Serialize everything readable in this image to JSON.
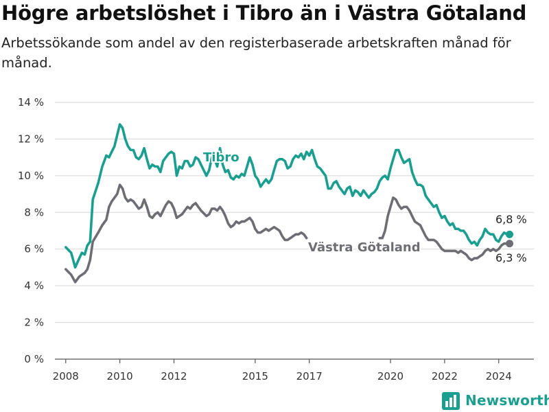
{
  "title": "Högre arbetslöshet i Tibro än i Västra Götaland",
  "subtitle": "Arbetssökande som andel av den registerbaserade arbetskraften månad för månad.",
  "brand": {
    "name": "Newsworthy",
    "icon": "bar-chart-logo-icon"
  },
  "colors": {
    "tibro": "#1a9e8f",
    "vg": "#6d6e73",
    "grid": "#d6d6d6"
  },
  "chart_data": {
    "type": "line",
    "ylim": [
      0,
      14
    ],
    "xlim": [
      2007.6,
      2025.3
    ],
    "y_ticks": [
      0,
      2,
      4,
      6,
      8,
      10,
      12,
      14
    ],
    "y_tick_labels": [
      "0 %",
      "2 %",
      "4 %",
      "6 %",
      "8 %",
      "10 %",
      "12 %",
      "14 %"
    ],
    "x_ticks": [
      2008,
      2010,
      2012,
      2015,
      2017,
      2020,
      2022,
      2024
    ],
    "x_tick_labels": [
      "2008",
      "2010",
      "2012",
      "2015",
      "2017",
      "2020",
      "2022",
      "2024"
    ],
    "grid": true,
    "series": [
      {
        "name": "Tibro",
        "end_label": "6,8 %",
        "points": [
          [
            2008.0,
            6.1
          ],
          [
            2008.2,
            5.8
          ],
          [
            2008.35,
            5.0
          ],
          [
            2008.5,
            5.5
          ],
          [
            2008.6,
            5.8
          ],
          [
            2008.7,
            5.7
          ],
          [
            2008.8,
            6.2
          ],
          [
            2008.9,
            6.4
          ],
          [
            2009.0,
            8.7
          ],
          [
            2009.2,
            9.6
          ],
          [
            2009.35,
            10.5
          ],
          [
            2009.5,
            11.1
          ],
          [
            2009.6,
            11.0
          ],
          [
            2009.7,
            11.3
          ],
          [
            2009.8,
            11.6
          ],
          [
            2009.9,
            12.2
          ],
          [
            2010.0,
            12.8
          ],
          [
            2010.1,
            12.6
          ],
          [
            2010.2,
            12.0
          ],
          [
            2010.3,
            11.6
          ],
          [
            2010.4,
            11.4
          ],
          [
            2010.5,
            11.4
          ],
          [
            2010.6,
            11.0
          ],
          [
            2010.7,
            10.9
          ],
          [
            2010.8,
            11.1
          ],
          [
            2010.9,
            11.5
          ],
          [
            2011.0,
            10.9
          ],
          [
            2011.1,
            10.4
          ],
          [
            2011.2,
            10.6
          ],
          [
            2011.3,
            10.5
          ],
          [
            2011.4,
            10.5
          ],
          [
            2011.5,
            10.2
          ],
          [
            2011.6,
            10.8
          ],
          [
            2011.7,
            11.0
          ],
          [
            2011.8,
            11.2
          ],
          [
            2011.9,
            11.3
          ],
          [
            2012.0,
            11.2
          ],
          [
            2012.1,
            10.0
          ],
          [
            2012.2,
            10.5
          ],
          [
            2012.3,
            10.4
          ],
          [
            2012.4,
            10.8
          ],
          [
            2012.5,
            10.8
          ],
          [
            2012.6,
            10.5
          ],
          [
            2012.7,
            10.6
          ],
          [
            2012.8,
            11.0
          ],
          [
            2012.9,
            10.9
          ],
          [
            2013.0,
            10.6
          ],
          [
            2013.2,
            10.0
          ],
          [
            2013.3,
            10.3
          ],
          [
            2013.4,
            11.0
          ],
          [
            2013.5,
            10.9
          ],
          [
            2013.6,
            10.5
          ],
          [
            2013.7,
            11.5
          ],
          [
            2013.8,
            10.6
          ],
          [
            2013.9,
            10.2
          ],
          [
            2014.0,
            10.3
          ],
          [
            2014.1,
            9.9
          ],
          [
            2014.2,
            9.8
          ],
          [
            2014.3,
            10.0
          ],
          [
            2014.4,
            9.9
          ],
          [
            2014.5,
            10.1
          ],
          [
            2014.6,
            10.0
          ],
          [
            2014.7,
            10.5
          ],
          [
            2014.8,
            11.0
          ],
          [
            2014.9,
            10.6
          ],
          [
            2015.0,
            10.0
          ],
          [
            2015.1,
            9.8
          ],
          [
            2015.2,
            9.4
          ],
          [
            2015.3,
            9.6
          ],
          [
            2015.4,
            9.8
          ],
          [
            2015.5,
            9.6
          ],
          [
            2015.6,
            9.8
          ],
          [
            2015.7,
            10.3
          ],
          [
            2015.8,
            10.8
          ],
          [
            2015.9,
            10.9
          ],
          [
            2016.0,
            10.9
          ],
          [
            2016.1,
            10.8
          ],
          [
            2016.2,
            10.4
          ],
          [
            2016.3,
            10.5
          ],
          [
            2016.4,
            10.9
          ],
          [
            2016.5,
            11.1
          ],
          [
            2016.6,
            11.0
          ],
          [
            2016.7,
            11.2
          ],
          [
            2016.8,
            10.9
          ],
          [
            2016.9,
            11.3
          ],
          [
            2017.0,
            11.1
          ],
          [
            2017.1,
            11.4
          ],
          [
            2017.2,
            10.9
          ],
          [
            2017.3,
            10.5
          ],
          [
            2017.4,
            10.4
          ],
          [
            2017.5,
            10.2
          ],
          [
            2017.6,
            10.0
          ],
          [
            2017.7,
            9.3
          ],
          [
            2017.8,
            9.3
          ],
          [
            2017.9,
            9.6
          ],
          [
            2018.0,
            9.7
          ],
          [
            2018.1,
            9.4
          ],
          [
            2018.2,
            9.2
          ],
          [
            2018.3,
            9.0
          ],
          [
            2018.4,
            9.3
          ],
          [
            2018.5,
            9.4
          ],
          [
            2018.6,
            8.9
          ],
          [
            2018.7,
            9.2
          ],
          [
            2018.8,
            9.1
          ],
          [
            2018.9,
            8.9
          ],
          [
            2019.0,
            9.2
          ],
          [
            2019.1,
            9.0
          ],
          [
            2019.2,
            8.8
          ],
          [
            2019.3,
            9.0
          ],
          [
            2019.4,
            9.1
          ],
          [
            2019.5,
            9.3
          ],
          [
            2019.6,
            9.7
          ],
          [
            2019.7,
            9.9
          ],
          [
            2019.8,
            10.0
          ],
          [
            2019.9,
            9.8
          ],
          [
            2020.0,
            10.4
          ],
          [
            2020.1,
            10.9
          ],
          [
            2020.2,
            11.4
          ],
          [
            2020.3,
            11.4
          ],
          [
            2020.4,
            11.0
          ],
          [
            2020.5,
            10.7
          ],
          [
            2020.6,
            10.8
          ],
          [
            2020.7,
            10.9
          ],
          [
            2020.8,
            10.2
          ],
          [
            2020.9,
            9.8
          ],
          [
            2021.0,
            9.5
          ],
          [
            2021.1,
            9.5
          ],
          [
            2021.2,
            9.4
          ],
          [
            2021.3,
            8.9
          ],
          [
            2021.4,
            8.7
          ],
          [
            2021.5,
            8.5
          ],
          [
            2021.6,
            8.3
          ],
          [
            2021.7,
            8.4
          ],
          [
            2021.8,
            8.0
          ],
          [
            2021.9,
            7.7
          ],
          [
            2022.0,
            7.8
          ],
          [
            2022.1,
            7.5
          ],
          [
            2022.2,
            7.3
          ],
          [
            2022.3,
            7.4
          ],
          [
            2022.4,
            7.1
          ],
          [
            2022.5,
            7.1
          ],
          [
            2022.6,
            7.0
          ],
          [
            2022.7,
            7.0
          ],
          [
            2022.8,
            6.8
          ],
          [
            2022.9,
            6.5
          ],
          [
            2023.0,
            6.3
          ],
          [
            2023.1,
            6.4
          ],
          [
            2023.2,
            6.2
          ],
          [
            2023.3,
            6.5
          ],
          [
            2023.4,
            6.7
          ],
          [
            2023.5,
            7.1
          ],
          [
            2023.6,
            6.9
          ],
          [
            2023.7,
            6.8
          ],
          [
            2023.8,
            6.8
          ],
          [
            2023.9,
            6.5
          ],
          [
            2024.0,
            6.4
          ],
          [
            2024.1,
            6.7
          ],
          [
            2024.2,
            6.9
          ],
          [
            2024.3,
            6.8
          ],
          [
            2024.4,
            6.8
          ]
        ]
      },
      {
        "name": "Västra Götaland",
        "end_label": "6,3 %",
        "points": [
          [
            2008.0,
            4.9
          ],
          [
            2008.2,
            4.6
          ],
          [
            2008.35,
            4.2
          ],
          [
            2008.5,
            4.5
          ],
          [
            2008.6,
            4.6
          ],
          [
            2008.7,
            4.7
          ],
          [
            2008.8,
            4.9
          ],
          [
            2008.9,
            5.4
          ],
          [
            2009.0,
            6.4
          ],
          [
            2009.2,
            6.9
          ],
          [
            2009.35,
            7.3
          ],
          [
            2009.5,
            7.6
          ],
          [
            2009.6,
            8.3
          ],
          [
            2009.7,
            8.6
          ],
          [
            2009.8,
            8.8
          ],
          [
            2009.9,
            9.0
          ],
          [
            2010.0,
            9.5
          ],
          [
            2010.1,
            9.3
          ],
          [
            2010.2,
            8.8
          ],
          [
            2010.3,
            8.6
          ],
          [
            2010.4,
            8.7
          ],
          [
            2010.5,
            8.6
          ],
          [
            2010.6,
            8.4
          ],
          [
            2010.7,
            8.2
          ],
          [
            2010.8,
            8.3
          ],
          [
            2010.9,
            8.7
          ],
          [
            2011.0,
            8.3
          ],
          [
            2011.1,
            7.8
          ],
          [
            2011.2,
            7.7
          ],
          [
            2011.3,
            7.9
          ],
          [
            2011.4,
            8.0
          ],
          [
            2011.5,
            7.8
          ],
          [
            2011.6,
            8.1
          ],
          [
            2011.7,
            8.4
          ],
          [
            2011.8,
            8.6
          ],
          [
            2011.9,
            8.5
          ],
          [
            2012.0,
            8.2
          ],
          [
            2012.1,
            7.7
          ],
          [
            2012.2,
            7.8
          ],
          [
            2012.3,
            7.9
          ],
          [
            2012.4,
            8.1
          ],
          [
            2012.5,
            8.3
          ],
          [
            2012.6,
            8.2
          ],
          [
            2012.7,
            8.4
          ],
          [
            2012.8,
            8.5
          ],
          [
            2012.9,
            8.3
          ],
          [
            2013.0,
            8.1
          ],
          [
            2013.2,
            7.8
          ],
          [
            2013.3,
            7.9
          ],
          [
            2013.4,
            8.2
          ],
          [
            2013.5,
            8.2
          ],
          [
            2013.6,
            8.1
          ],
          [
            2013.7,
            8.3
          ],
          [
            2013.8,
            8.1
          ],
          [
            2013.9,
            7.8
          ],
          [
            2014.0,
            7.4
          ],
          [
            2014.1,
            7.2
          ],
          [
            2014.2,
            7.3
          ],
          [
            2014.3,
            7.5
          ],
          [
            2014.4,
            7.4
          ],
          [
            2014.5,
            7.5
          ],
          [
            2014.6,
            7.5
          ],
          [
            2014.7,
            7.6
          ],
          [
            2014.8,
            7.7
          ],
          [
            2014.9,
            7.5
          ],
          [
            2015.0,
            7.1
          ],
          [
            2015.1,
            6.9
          ],
          [
            2015.2,
            6.9
          ],
          [
            2015.3,
            7.0
          ],
          [
            2015.4,
            7.1
          ],
          [
            2015.5,
            7.0
          ],
          [
            2015.6,
            7.1
          ],
          [
            2015.7,
            7.2
          ],
          [
            2015.8,
            7.1
          ],
          [
            2015.9,
            7.0
          ],
          [
            2016.0,
            6.7
          ],
          [
            2016.1,
            6.5
          ],
          [
            2016.2,
            6.5
          ],
          [
            2016.3,
            6.6
          ],
          [
            2016.4,
            6.7
          ],
          [
            2016.5,
            6.8
          ],
          [
            2016.6,
            6.8
          ],
          [
            2016.7,
            6.9
          ],
          [
            2016.8,
            6.8
          ],
          [
            2016.9,
            6.6
          ],
          [
            2019.6,
            6.6
          ],
          [
            2019.7,
            6.6
          ],
          [
            2019.8,
            7.0
          ],
          [
            2019.9,
            7.8
          ],
          [
            2020.0,
            8.3
          ],
          [
            2020.1,
            8.8
          ],
          [
            2020.2,
            8.7
          ],
          [
            2020.3,
            8.4
          ],
          [
            2020.4,
            8.2
          ],
          [
            2020.5,
            8.3
          ],
          [
            2020.6,
            8.3
          ],
          [
            2020.7,
            8.1
          ],
          [
            2020.8,
            7.8
          ],
          [
            2020.9,
            7.5
          ],
          [
            2021.0,
            7.4
          ],
          [
            2021.1,
            7.3
          ],
          [
            2021.2,
            7.0
          ],
          [
            2021.3,
            6.7
          ],
          [
            2021.4,
            6.5
          ],
          [
            2021.5,
            6.5
          ],
          [
            2021.6,
            6.5
          ],
          [
            2021.7,
            6.4
          ],
          [
            2021.8,
            6.2
          ],
          [
            2021.9,
            6.0
          ],
          [
            2022.0,
            5.9
          ],
          [
            2022.1,
            5.9
          ],
          [
            2022.2,
            5.9
          ],
          [
            2022.3,
            5.9
          ],
          [
            2022.4,
            5.9
          ],
          [
            2022.5,
            5.8
          ],
          [
            2022.6,
            5.9
          ],
          [
            2022.7,
            5.8
          ],
          [
            2022.8,
            5.7
          ],
          [
            2022.9,
            5.5
          ],
          [
            2023.0,
            5.4
          ],
          [
            2023.1,
            5.5
          ],
          [
            2023.2,
            5.5
          ],
          [
            2023.3,
            5.6
          ],
          [
            2023.4,
            5.7
          ],
          [
            2023.5,
            5.9
          ],
          [
            2023.6,
            6.0
          ],
          [
            2023.7,
            5.9
          ],
          [
            2023.8,
            6.0
          ],
          [
            2023.9,
            5.9
          ],
          [
            2024.0,
            6.0
          ],
          [
            2024.1,
            6.2
          ],
          [
            2024.2,
            6.3
          ],
          [
            2024.3,
            6.3
          ],
          [
            2024.4,
            6.3
          ]
        ]
      }
    ]
  }
}
